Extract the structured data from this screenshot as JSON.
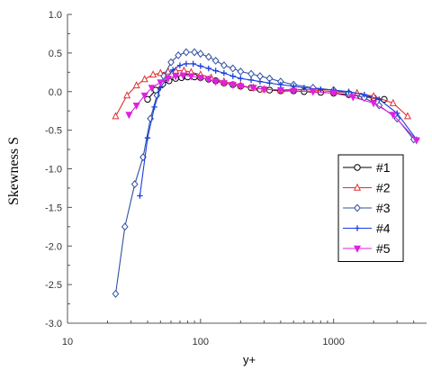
{
  "chart_data": {
    "type": "line",
    "xscale": "log",
    "xlim": [
      10,
      5000
    ],
    "ylim": [
      -3.0,
      1.0
    ],
    "xlabel": "y+",
    "ylabel": "Skewness S",
    "x_ticks": [
      10,
      100,
      1000
    ],
    "x_tick_labels": [
      "10",
      "100",
      "1000"
    ],
    "y_ticks": [
      1.0,
      0.5,
      0.0,
      -0.5,
      -1.0,
      -1.5,
      -2.0,
      -2.5,
      -3.0
    ],
    "y_tick_labels": [
      "1.0",
      "0.5",
      "0.0",
      "-0.5",
      "-1.0",
      "-1.5",
      "-2.0",
      "-2.5",
      "-3.0"
    ],
    "legend_position": "right-middle",
    "series": [
      {
        "name": "#1",
        "color": "#000000",
        "marker": "circle",
        "x": [
          40,
          46,
          52,
          58,
          65,
          72,
          80,
          90,
          100,
          115,
          130,
          150,
          175,
          200,
          240,
          280,
          330,
          400,
          500,
          600,
          800,
          1000,
          1300,
          1600,
          2000,
          2400
        ],
        "y": [
          -0.1,
          0.02,
          0.1,
          0.14,
          0.17,
          0.18,
          0.19,
          0.19,
          0.18,
          0.16,
          0.14,
          0.11,
          0.09,
          0.07,
          0.05,
          0.03,
          0.02,
          0.01,
          0.01,
          0.0,
          -0.01,
          -0.02,
          -0.04,
          -0.06,
          -0.08,
          -0.1
        ]
      },
      {
        "name": "#2",
        "color": "#e03030",
        "marker": "triangle-up",
        "x": [
          23,
          28,
          33,
          38,
          44,
          50,
          57,
          65,
          75,
          85,
          100,
          120,
          150,
          200,
          250,
          300,
          400,
          500,
          700,
          1000,
          1500,
          2000,
          2800,
          3600
        ],
        "y": [
          -0.32,
          -0.05,
          0.08,
          0.16,
          0.22,
          0.24,
          0.26,
          0.27,
          0.27,
          0.25,
          0.22,
          0.18,
          0.13,
          0.08,
          0.05,
          0.03,
          0.02,
          0.03,
          0.02,
          0.0,
          -0.02,
          -0.06,
          -0.15,
          -0.32
        ]
      },
      {
        "name": "#3",
        "color": "#3050a0",
        "marker": "diamond",
        "x": [
          23,
          27,
          32,
          37,
          42,
          47,
          53,
          60,
          68,
          78,
          90,
          100,
          115,
          130,
          150,
          175,
          200,
          240,
          280,
          330,
          400,
          500,
          700,
          1000,
          1300,
          1700,
          2200,
          3000,
          4000
        ],
        "y": [
          -2.62,
          -1.75,
          -1.2,
          -0.85,
          -0.35,
          -0.05,
          0.2,
          0.38,
          0.47,
          0.51,
          0.51,
          0.49,
          0.45,
          0.4,
          0.34,
          0.3,
          0.26,
          0.23,
          0.2,
          0.17,
          0.13,
          0.09,
          0.05,
          0.02,
          -0.02,
          -0.08,
          -0.18,
          -0.35,
          -0.62
        ]
      },
      {
        "name": "#4",
        "color": "#1a3ee0",
        "marker": "plus",
        "x": [
          35,
          40,
          45,
          50,
          56,
          62,
          70,
          78,
          88,
          100,
          115,
          130,
          150,
          175,
          200,
          240,
          280,
          330,
          400,
          500,
          600,
          800,
          1000,
          1300,
          1700,
          2200,
          3000,
          4200
        ],
        "y": [
          -1.35,
          -0.6,
          -0.2,
          0.05,
          0.18,
          0.28,
          0.34,
          0.36,
          0.36,
          0.33,
          0.3,
          0.27,
          0.24,
          0.2,
          0.17,
          0.15,
          0.13,
          0.11,
          0.09,
          0.07,
          0.05,
          0.03,
          0.02,
          0.0,
          -0.04,
          -0.1,
          -0.28,
          -0.62
        ]
      },
      {
        "name": "#5",
        "color": "#e020e0",
        "marker": "triangle-down",
        "x": [
          29,
          33,
          38,
          43,
          50,
          57,
          65,
          74,
          85,
          100,
          115,
          130,
          150,
          175,
          200,
          250,
          300,
          400,
          500,
          700,
          1000,
          1400,
          2000,
          2800,
          4200
        ],
        "y": [
          -0.3,
          -0.18,
          -0.05,
          0.05,
          0.12,
          0.17,
          0.2,
          0.21,
          0.2,
          0.18,
          0.16,
          0.13,
          0.11,
          0.09,
          0.07,
          0.05,
          0.03,
          0.02,
          0.01,
          0.0,
          -0.02,
          -0.07,
          -0.15,
          -0.3,
          -0.63
        ]
      }
    ]
  }
}
